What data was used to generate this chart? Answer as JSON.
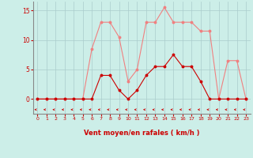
{
  "x": [
    0,
    1,
    2,
    3,
    4,
    5,
    6,
    7,
    8,
    9,
    10,
    11,
    12,
    13,
    14,
    15,
    16,
    17,
    18,
    19,
    20,
    21,
    22,
    23
  ],
  "rafales": [
    0,
    0,
    0,
    0,
    0,
    0,
    8.5,
    13,
    13,
    10.5,
    3,
    5,
    13,
    13,
    15.5,
    13,
    13,
    13,
    11.5,
    11.5,
    0,
    6.5,
    6.5,
    0
  ],
  "moyen": [
    0,
    0,
    0,
    0,
    0,
    0,
    0,
    4,
    4,
    1.5,
    0,
    1.5,
    4,
    5.5,
    5.5,
    7.5,
    5.5,
    5.5,
    3,
    0,
    0,
    0,
    0,
    0
  ],
  "line_color_rafales": "#f08080",
  "line_color_moyen": "#cc0000",
  "bg_color": "#cceee8",
  "grid_color": "#aacccc",
  "xlabel": "Vent moyen/en rafales ( km/h )",
  "xlabel_color": "#cc0000",
  "yticks": [
    0,
    5,
    10,
    15
  ],
  "ylim": [
    -2.5,
    16.5
  ],
  "xlim": [
    -0.5,
    23.5
  ],
  "tick_color": "#cc0000",
  "spine_color": "#888888"
}
